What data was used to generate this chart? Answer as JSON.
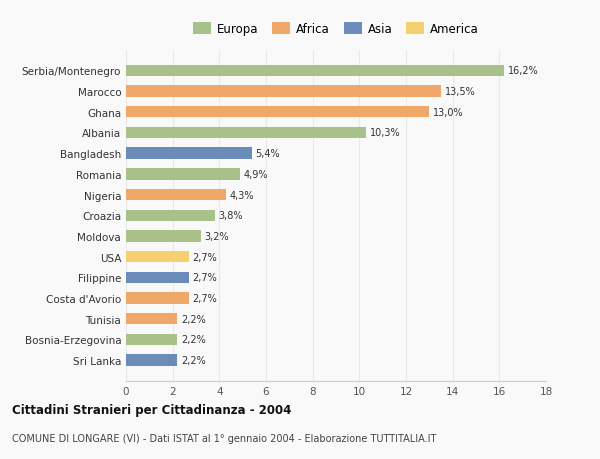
{
  "categories": [
    "Sri Lanka",
    "Bosnia-Erzegovina",
    "Tunisia",
    "Costa d'Avorio",
    "Filippine",
    "USA",
    "Moldova",
    "Croazia",
    "Nigeria",
    "Romania",
    "Bangladesh",
    "Albania",
    "Ghana",
    "Marocco",
    "Serbia/Montenegro"
  ],
  "values": [
    2.2,
    2.2,
    2.2,
    2.7,
    2.7,
    2.7,
    3.2,
    3.8,
    4.3,
    4.9,
    5.4,
    10.3,
    13.0,
    13.5,
    16.2
  ],
  "labels": [
    "2,2%",
    "2,2%",
    "2,2%",
    "2,7%",
    "2,7%",
    "2,7%",
    "3,2%",
    "3,8%",
    "4,3%",
    "4,9%",
    "5,4%",
    "10,3%",
    "13,0%",
    "13,5%",
    "16,2%"
  ],
  "colors": [
    "#6b8cba",
    "#a8c08a",
    "#f0a868",
    "#f0a868",
    "#6b8cba",
    "#f5d070",
    "#a8c08a",
    "#a8c08a",
    "#f0a868",
    "#a8c08a",
    "#6b8cba",
    "#a8c08a",
    "#f0a868",
    "#f0a868",
    "#a8c08a"
  ],
  "legend_labels": [
    "Europa",
    "Africa",
    "Asia",
    "America"
  ],
  "legend_colors": [
    "#a8c08a",
    "#f0a868",
    "#6b8cba",
    "#f5d070"
  ],
  "xlim": [
    0,
    18
  ],
  "xticks": [
    0,
    2,
    4,
    6,
    8,
    10,
    12,
    14,
    16,
    18
  ],
  "title": "Cittadini Stranieri per Cittadinanza - 2004",
  "subtitle": "COMUNE DI LONGARE (VI) - Dati ISTAT al 1° gennaio 2004 - Elaborazione TUTTITALIA.IT",
  "bg_color": "#f9f9f9",
  "grid_color": "#e8e8e8"
}
